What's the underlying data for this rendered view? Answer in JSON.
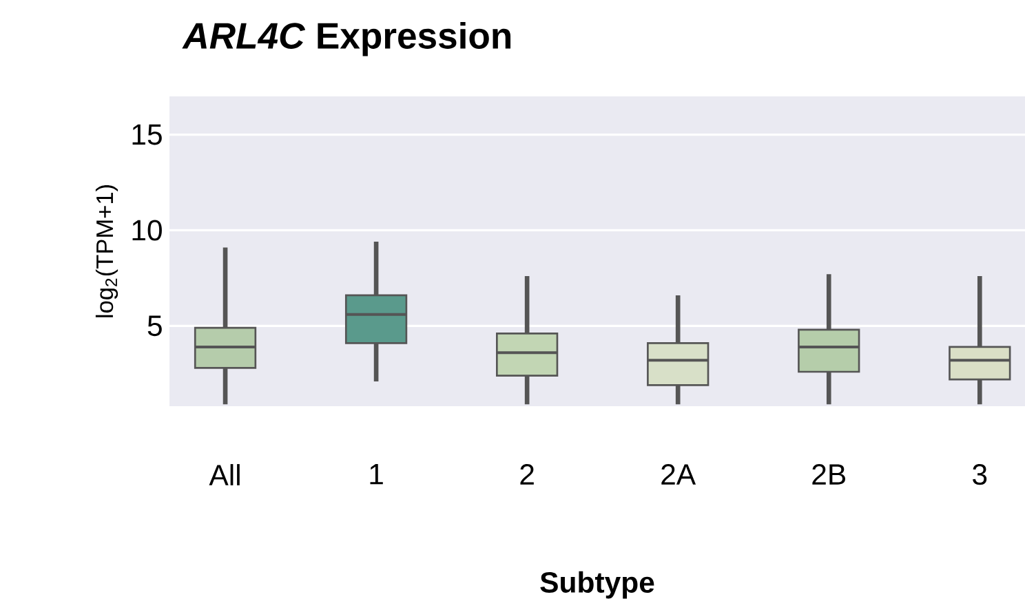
{
  "chart_data": {
    "type": "box",
    "title": "*ARL4C* Expression",
    "xlabel": "Subtype",
    "ylabel": "log$_{2}$(TPM+1)",
    "categories": [
      "All",
      "1",
      "2",
      "2A",
      "2B",
      "3"
    ],
    "colors": [
      "#b5ccab",
      "#5a9a8c",
      "#c2d6b4",
      "#d8e0c8",
      "#b5cdaa",
      "#dadfc6"
    ],
    "boxes": [
      {
        "low": 0.9,
        "q1": 2.8,
        "median": 3.9,
        "q3": 4.9,
        "high": 9.1
      },
      {
        "low": 2.1,
        "q1": 4.1,
        "median": 5.6,
        "q3": 6.6,
        "high": 9.4
      },
      {
        "low": 0.9,
        "q1": 2.4,
        "median": 3.6,
        "q3": 4.6,
        "high": 7.6
      },
      {
        "low": 0.9,
        "q1": 1.9,
        "median": 3.2,
        "q3": 4.1,
        "high": 6.6
      },
      {
        "low": 0.9,
        "q1": 2.6,
        "median": 3.9,
        "q3": 4.8,
        "high": 7.7
      },
      {
        "low": 0.9,
        "q1": 2.2,
        "median": 3.2,
        "q3": 3.9,
        "high": 7.6
      }
    ],
    "ylim": [
      0.8,
      17
    ],
    "yticks": [
      5,
      10,
      15
    ],
    "grid": "y"
  }
}
